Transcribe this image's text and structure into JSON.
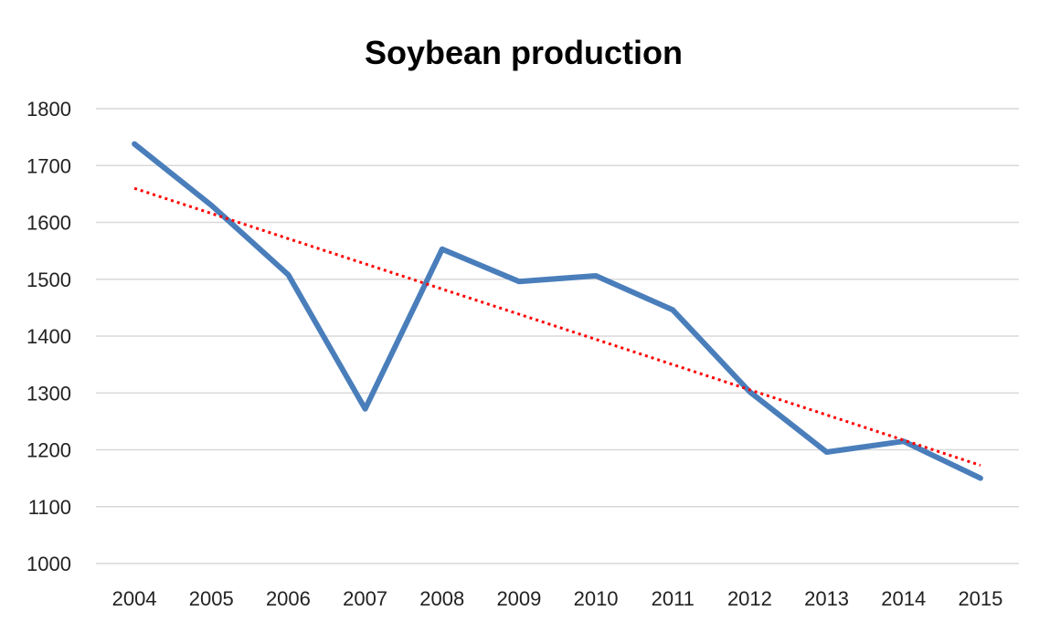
{
  "chart_data": {
    "type": "line",
    "title": "Soybean production",
    "xlabel": "",
    "ylabel": "",
    "categories": [
      "2004",
      "2005",
      "2006",
      "2007",
      "2008",
      "2009",
      "2010",
      "2011",
      "2012",
      "2013",
      "2014",
      "2015"
    ],
    "series": [
      {
        "values": [
          1738,
          1630,
          1508,
          1272,
          1553,
          1496,
          1506,
          1446,
          1302,
          1196,
          1215,
          1150
        ],
        "color": "#4a7ebb",
        "style": "solid"
      },
      {
        "values": [
          1660,
          1615.7,
          1571.4,
          1527.1,
          1482.8,
          1438.5,
          1394.2,
          1349.9,
          1305.6,
          1261.3,
          1217.0,
          1172.7
        ],
        "color": "#ff0000",
        "style": "dotted",
        "kind": "linear-trendline"
      }
    ],
    "yticks": [
      1000,
      1100,
      1200,
      1300,
      1400,
      1500,
      1600,
      1700,
      1800
    ],
    "ylim": [
      1000,
      1800
    ],
    "grid": true,
    "legend": "none"
  }
}
